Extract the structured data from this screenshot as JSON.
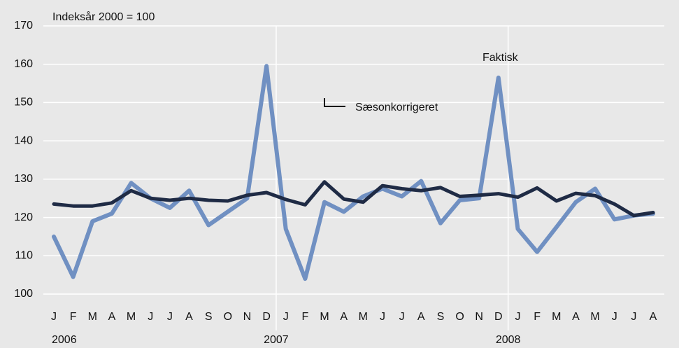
{
  "chart_data": {
    "type": "line",
    "title": "Indeksår 2000 = 100",
    "categories": [
      "J",
      "F",
      "M",
      "A",
      "M",
      "J",
      "J",
      "A",
      "S",
      "O",
      "N",
      "D",
      "J",
      "F",
      "M",
      "A",
      "M",
      "J",
      "J",
      "A",
      "S",
      "O",
      "N",
      "D",
      "J",
      "F",
      "M",
      "A",
      "M",
      "J",
      "J",
      "A"
    ],
    "years": [
      "2006",
      "2007",
      "2008"
    ],
    "series": [
      {
        "name": "Faktisk",
        "color": "#7090c2",
        "values": [
          115,
          104.5,
          119,
          121,
          129,
          125,
          122.5,
          127,
          118,
          121.5,
          125,
          159.5,
          117,
          104,
          124,
          121.5,
          125.5,
          127.5,
          125.5,
          129.5,
          118.5,
          124.5,
          125,
          156.5,
          117,
          111,
          117.5,
          124,
          127.5,
          119.5,
          120.5,
          121
        ]
      },
      {
        "name": "Sæsonkorrigeret",
        "color": "#1f2b45",
        "values": [
          123.5,
          123,
          123,
          123.8,
          127,
          125,
          124.5,
          125,
          124.5,
          124.3,
          125.8,
          126.5,
          124.7,
          123.3,
          129.3,
          124.8,
          124,
          128.3,
          127.5,
          127,
          127.8,
          125.5,
          125.8,
          126.2,
          125.3,
          127.7,
          124.3,
          126.3,
          125.7,
          123.5,
          120.5,
          121.3
        ]
      }
    ],
    "ylim": [
      100,
      170
    ],
    "yticks": [
      100,
      110,
      120,
      130,
      140,
      150,
      160,
      170
    ],
    "grid": true
  }
}
